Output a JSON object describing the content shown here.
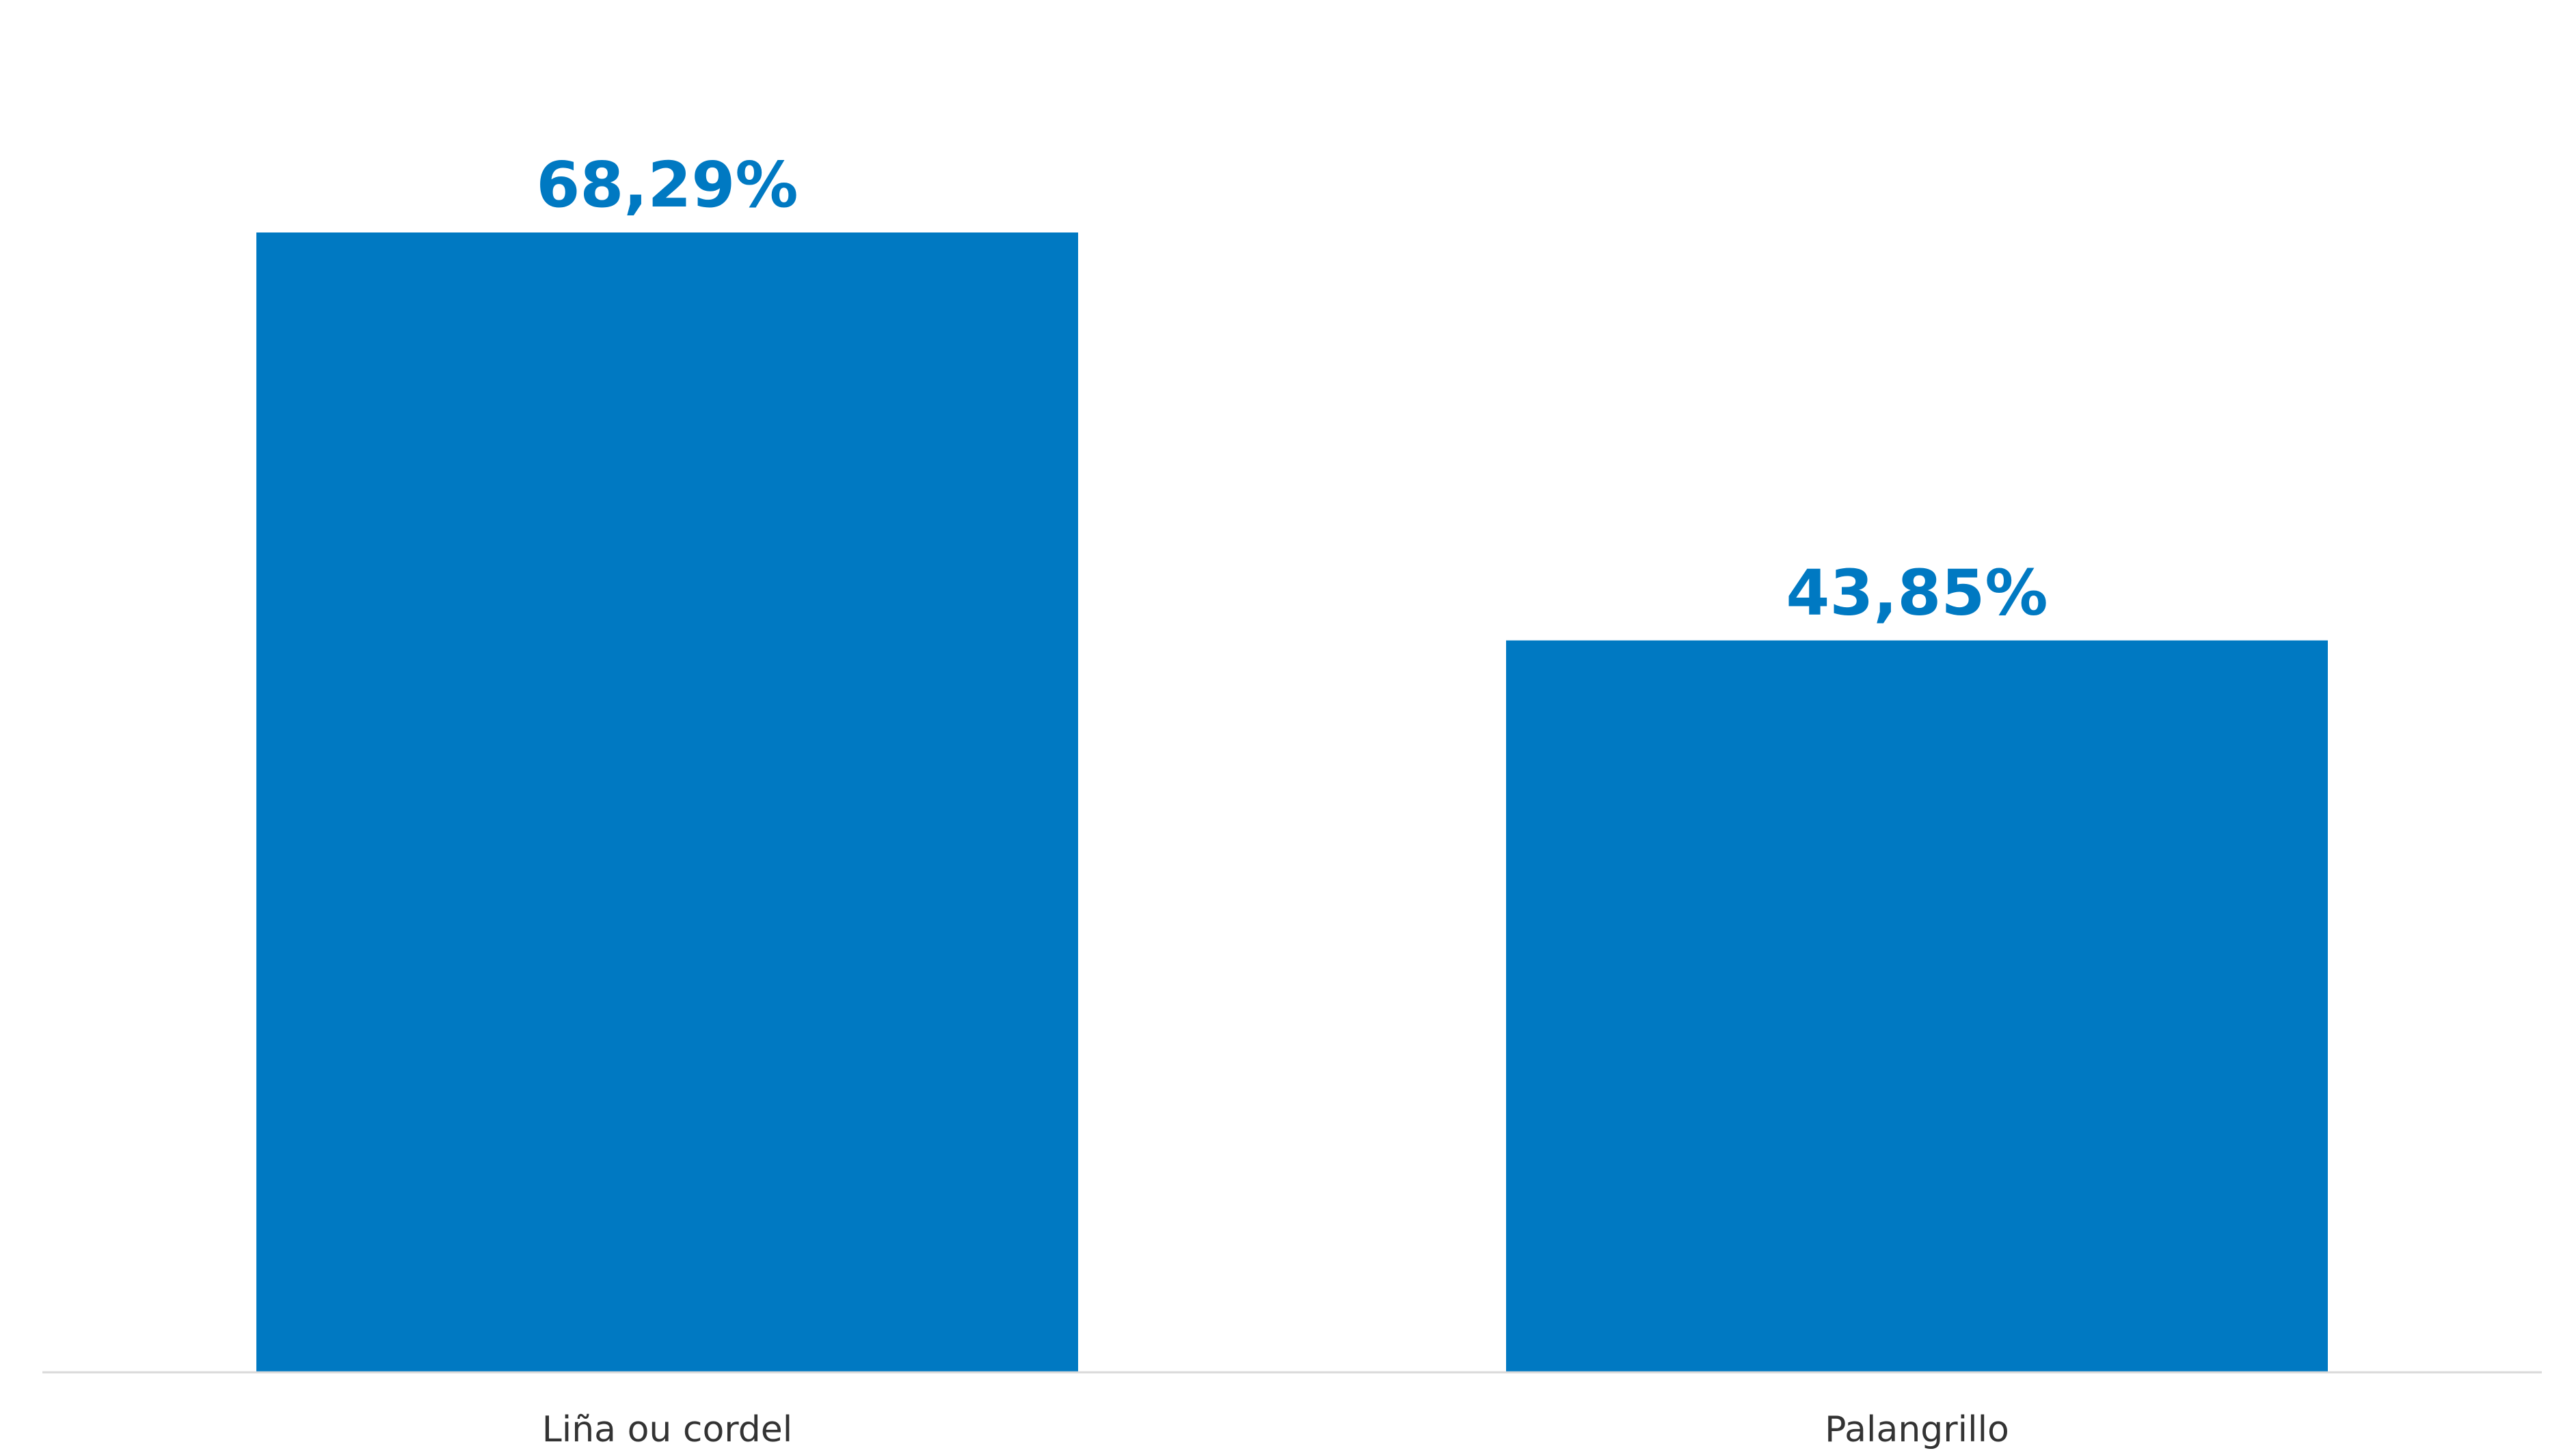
{
  "chart_data": {
    "type": "bar",
    "title": "",
    "xlabel": "",
    "ylabel": "",
    "categories": [
      "Liña ou cordel",
      "Palangrillo"
    ],
    "values": [
      68.29,
      43.85
    ],
    "value_labels": [
      "68,29%",
      "43,85%"
    ],
    "ylim": [
      0,
      82
    ],
    "grid": false,
    "legend": "none",
    "bar_color": "#0079c2",
    "label_color": "#0079c2",
    "axis_color": "#d9d9d9"
  }
}
